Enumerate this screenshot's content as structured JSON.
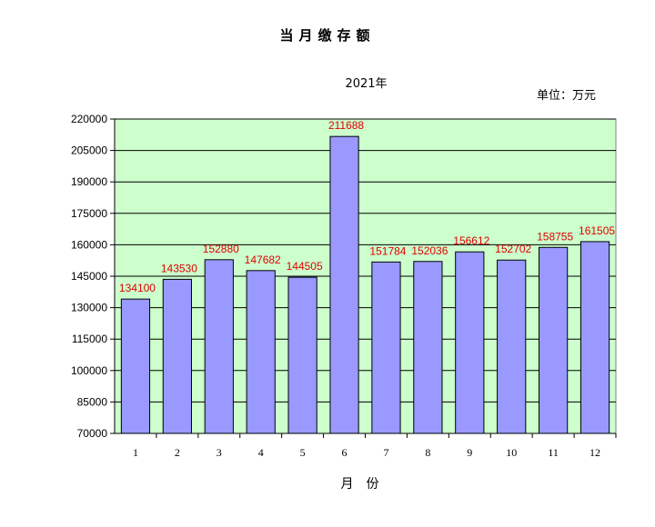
{
  "chart_data": {
    "type": "bar",
    "title": "当月缴存额",
    "subtitle": "2021年",
    "unit_label": "单位：万元",
    "xlabel": "月份",
    "ylabel": "",
    "categories": [
      "1",
      "2",
      "3",
      "4",
      "5",
      "6",
      "7",
      "8",
      "9",
      "10",
      "11",
      "12"
    ],
    "values": [
      134100,
      143530,
      152880,
      147682,
      144505,
      211688,
      151784,
      152036,
      156612,
      152702,
      158755,
      161505
    ],
    "value_labels": [
      "134100",
      "143530",
      "152880",
      "147682",
      "144505",
      "211688",
      "151784",
      "152036",
      "156612",
      "152702",
      "158755",
      "161505"
    ],
    "ylim": [
      70000,
      220000
    ],
    "yticks": [
      "70000",
      "85000",
      "100000",
      "115000",
      "130000",
      "145000",
      "160000",
      "175000",
      "190000",
      "205000",
      "220000"
    ],
    "grid": true,
    "legend": "none",
    "colors": {
      "plot_background": "#ccffcc",
      "bar_fill": "#9999ff",
      "bar_stroke": "#000000",
      "data_label": "#e00000",
      "gridline": "#000000"
    }
  }
}
